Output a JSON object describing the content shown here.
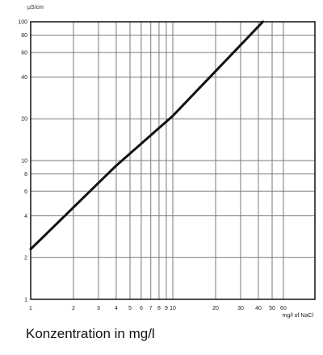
{
  "chart_data": {
    "type": "line",
    "title": "",
    "ylabel": "µS/cm",
    "xlabel": "mg/l of NaCl",
    "x_scale": "log",
    "y_scale": "log",
    "xlim": [
      1,
      100
    ],
    "ylim": [
      1,
      100
    ],
    "grid": true,
    "x_ticks": [
      1,
      2,
      3,
      4,
      5,
      6,
      7,
      8,
      9,
      10,
      20,
      30,
      40,
      50,
      60
    ],
    "x_tick_labels": [
      "1",
      "2",
      "3",
      "4",
      "5",
      "6",
      "7",
      "8",
      "9",
      "10",
      "20",
      "30",
      "40",
      "50",
      "60"
    ],
    "y_ticks": [
      1,
      2,
      4,
      6,
      8,
      10,
      20,
      40,
      60,
      80,
      100
    ],
    "y_tick_labels": [
      "1",
      "2",
      "4",
      "6",
      "8",
      "10",
      "20",
      "40",
      "60",
      "80",
      "100"
    ],
    "series": [
      {
        "x": [
          1,
          4,
          10,
          43
        ],
        "y": [
          2.3,
          9.2,
          21,
          100
        ]
      }
    ]
  },
  "caption": "Konzentration in mg/l"
}
